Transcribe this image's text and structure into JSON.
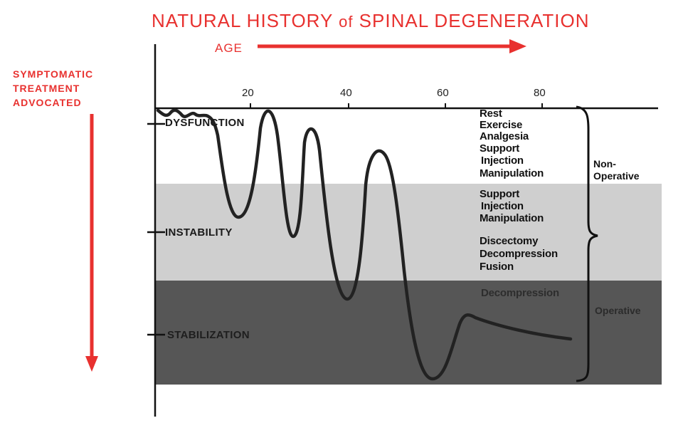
{
  "title": {
    "main_a": "NATURAL  HISTORY",
    "of": "of",
    "main_b": "SPINAL  DEGENERATION"
  },
  "age_label": "AGE",
  "side_label": {
    "line1": "SYMPTOMATIC",
    "line2": "TREATMENT",
    "line3": "ADVOCATED"
  },
  "axis": {
    "ticks": [
      "20",
      "40",
      "60",
      "80"
    ]
  },
  "bands": {
    "dysfunction": "DYSFUNCTION",
    "instability": "INSTABILITY",
    "stabilization": "STABILIZATION"
  },
  "treatments": {
    "dysfunction": [
      "Rest",
      "Exercise",
      "Analgesia",
      "Support",
      "Injection",
      "Manipulation"
    ],
    "instability": [
      "Support",
      "Injection",
      "Manipulation",
      "Discectomy",
      "Decompression",
      "Fusion"
    ],
    "stabilization": [
      "Decompression"
    ]
  },
  "categories": {
    "non_operative_1": "Non-",
    "non_operative_2": "Operative",
    "operative": "Operative"
  },
  "colors": {
    "accent_red": "#e8312f",
    "band_light": "#cfcfcf",
    "band_dark": "#565656",
    "curve": "#222222"
  }
}
